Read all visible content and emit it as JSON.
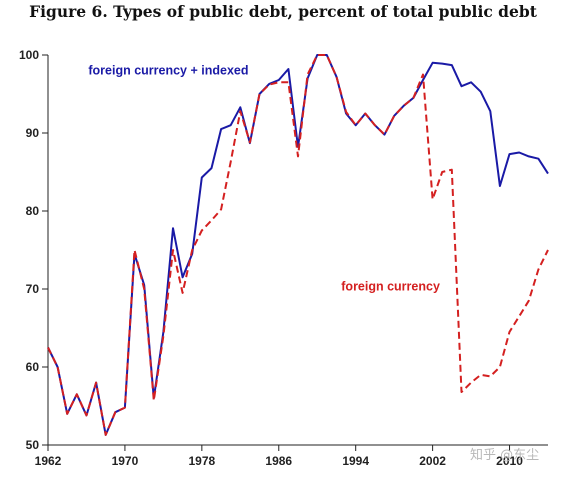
{
  "title": "Figure 6. Types of public debt, percent of total public debt",
  "watermark": "知乎 @东尘",
  "chart_data": {
    "type": "line",
    "title": "Figure 6. Types of public debt, percent of total public debt",
    "xlabel": "",
    "ylabel": "",
    "xlim": [
      1962,
      2014
    ],
    "ylim": [
      50,
      100
    ],
    "x_ticks": [
      1962,
      1970,
      1978,
      1986,
      1994,
      2002,
      2010
    ],
    "y_ticks": [
      50,
      60,
      70,
      80,
      90,
      100
    ],
    "grid": false,
    "series": [
      {
        "name": "foreign currency + indexed",
        "color": "#1a1aa6",
        "style": "solid",
        "x": [
          1962,
          1963,
          1964,
          1965,
          1966,
          1967,
          1968,
          1969,
          1970,
          1971,
          1972,
          1973,
          1974,
          1975,
          1976,
          1977,
          1978,
          1979,
          1980,
          1981,
          1982,
          1983,
          1984,
          1985,
          1986,
          1987,
          1988,
          1989,
          1990,
          1991,
          1992,
          1993,
          1994,
          1995,
          1996,
          1997,
          1998,
          1999,
          2000,
          2001,
          2002,
          2003,
          2004,
          2005,
          2006,
          2007,
          2008,
          2009,
          2010,
          2011,
          2012,
          2013,
          2014
        ],
        "values": [
          62.5,
          60,
          54,
          56.5,
          53.8,
          58,
          51.3,
          54.2,
          54.8,
          74.5,
          70.5,
          56,
          64.5,
          77.8,
          71.5,
          74.5,
          84.3,
          85.5,
          90.5,
          91,
          93.3,
          88.7,
          95,
          96.3,
          96.8,
          98.2,
          88.2,
          97,
          100,
          100,
          97.2,
          92.5,
          91,
          92.5,
          91,
          89.8,
          92.2,
          93.5,
          94.5,
          96.8,
          99,
          98.9,
          98.7,
          96,
          96.5,
          95.3,
          92.8,
          83.2,
          87.3,
          87.5,
          87,
          86.7,
          84.8
        ]
      },
      {
        "name": "foreign currency",
        "color": "#d42020",
        "style": "dashed",
        "x": [
          1962,
          1963,
          1964,
          1965,
          1966,
          1967,
          1968,
          1969,
          1970,
          1971,
          1972,
          1973,
          1974,
          1975,
          1976,
          1977,
          1978,
          1979,
          1980,
          1981,
          1982,
          1983,
          1984,
          1985,
          1986,
          1987,
          1988,
          1989,
          1990,
          1991,
          1992,
          1993,
          1994,
          1995,
          1996,
          1997,
          1998,
          1999,
          2000,
          2001,
          2002,
          2003,
          2004,
          2005,
          2006,
          2007,
          2008,
          2009,
          2010,
          2011,
          2012,
          2013,
          2014
        ],
        "values": [
          62.5,
          60,
          54,
          56.5,
          53.8,
          58,
          51.3,
          54.2,
          54.8,
          75,
          70,
          55.7,
          64,
          75,
          69.5,
          75,
          77.5,
          78.8,
          80.2,
          86.3,
          92.8,
          88.8,
          95,
          96.2,
          96.5,
          96.5,
          87,
          97.5,
          100,
          100,
          97.2,
          92.7,
          91,
          92.5,
          91,
          89.8,
          92.2,
          93.5,
          94.5,
          97.5,
          81.5,
          85,
          85.3,
          56.8,
          58,
          59,
          58.8,
          60,
          64.5,
          66.5,
          68.5,
          72.5,
          75
        ]
      }
    ],
    "labels": [
      {
        "text": "foreign currency + indexed",
        "x": 1966.2,
        "y": 97.5,
        "color": "#1a1aa6"
      },
      {
        "text": "foreign currency",
        "x": 1992.5,
        "y": 69.8,
        "color": "#d42020"
      }
    ]
  }
}
